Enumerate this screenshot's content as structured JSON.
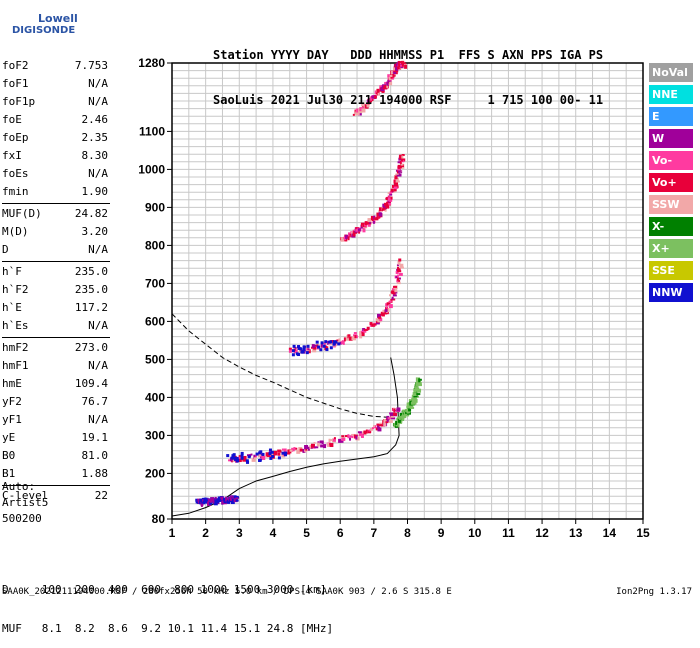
{
  "logo": {
    "line1": "Lowell",
    "line2": "DIGISONDE"
  },
  "header": {
    "row1": "Station YYYY DAY   DDD HHMMSS P1  FFS S AXN PPS IGA PS",
    "row2": "SaoLuis 2021 Jul30 211 194000 RSF     1 715 100 00- 11"
  },
  "params": [
    {
      "k": "foF2",
      "v": "7.753"
    },
    {
      "k": "foF1",
      "v": "N/A"
    },
    {
      "k": "foF1p",
      "v": "N/A"
    },
    {
      "k": "foE",
      "v": "2.46"
    },
    {
      "k": "foEp",
      "v": "2.35"
    },
    {
      "k": "fxI",
      "v": "8.30"
    },
    {
      "k": "foEs",
      "v": "N/A"
    },
    {
      "k": "fmin",
      "v": "1.90"
    },
    {
      "k": "MUF(D)",
      "v": "24.82"
    },
    {
      "k": "M(D)",
      "v": "3.20"
    },
    {
      "k": "D",
      "v": "N/A"
    },
    {
      "k": "h`F",
      "v": "235.0"
    },
    {
      "k": "h`F2",
      "v": "235.0"
    },
    {
      "k": "h`E",
      "v": "117.2"
    },
    {
      "k": "h`Es",
      "v": "N/A"
    },
    {
      "k": "hmF2",
      "v": "273.0"
    },
    {
      "k": "hmF1",
      "v": "N/A"
    },
    {
      "k": "hmE",
      "v": "109.4"
    },
    {
      "k": "yF2",
      "v": "76.7"
    },
    {
      "k": "yF1",
      "v": "N/A"
    },
    {
      "k": "yE",
      "v": "19.1"
    },
    {
      "k": "B0",
      "v": "81.0"
    },
    {
      "k": "B1",
      "v": "1.88"
    },
    {
      "k": "C-level",
      "v": "22"
    }
  ],
  "auto": {
    "line1": "Auto:",
    "line2": "Artist5",
    "line3": "500200"
  },
  "legend": [
    {
      "label": "NoVal",
      "color": "#a0a0a0"
    },
    {
      "label": "NNE",
      "color": "#00e0e0"
    },
    {
      "label": "E",
      "color": "#3399ff"
    },
    {
      "label": "W",
      "color": "#a0009a"
    },
    {
      "label": "Vo-",
      "color": "#ff3aa0"
    },
    {
      "label": "Vo+",
      "color": "#e8003a"
    },
    {
      "label": "SSW",
      "color": "#f2a8a8"
    },
    {
      "label": "X-",
      "color": "#008000"
    },
    {
      "label": "X+",
      "color": "#7cc060"
    },
    {
      "label": "SSE",
      "color": "#c8c800"
    },
    {
      "label": "NNW",
      "color": "#1010d0"
    }
  ],
  "muf": {
    "line1": "D     100  200  400  600  800 1000 1500 3000 [km]",
    "line2": "MUF   8.1  8.2  8.6  9.2 10.1 11.4 15.1 24.8 [MHz]"
  },
  "footer": {
    "left": "SAA0K_2021211194000.RSF / 280fx256h 50 kHz 5.0 km / DPS-4 SAA0K 903 / 2.6 S 315.8 E",
    "right": "Ion2Png 1.3.17"
  },
  "chart_data": {
    "type": "scatter",
    "xlim": [
      1,
      15
    ],
    "ylim": [
      80,
      1280
    ],
    "x_ticks": [
      "1",
      "2",
      "3",
      "4",
      "5",
      "6",
      "7",
      "8",
      "9",
      "10",
      "11",
      "12",
      "13",
      "14",
      "15"
    ],
    "y_ticks": [
      "80",
      "200",
      "300",
      "400",
      "500",
      "600",
      "700",
      "800",
      "900",
      "1000",
      "1100",
      "1280"
    ],
    "grid": true,
    "traces": [
      {
        "name": "O-trace 1st hop",
        "x": [
          2.7,
          3.0,
          3.5,
          4.0,
          4.5,
          5.0,
          5.5,
          6.0,
          6.5,
          7.0,
          7.3,
          7.5,
          7.65
        ],
        "y": [
          240,
          243,
          248,
          255,
          263,
          272,
          282,
          293,
          305,
          322,
          338,
          355,
          378
        ]
      },
      {
        "name": "O-trace 2nd hop",
        "x": [
          4.5,
          5.0,
          5.5,
          6.0,
          6.5,
          7.0,
          7.3,
          7.5,
          7.65,
          7.75
        ],
        "y": [
          527,
          530,
          540,
          552,
          570,
          600,
          630,
          665,
          710,
          760
        ]
      },
      {
        "name": "O-trace 3rd hop",
        "x": [
          6.0,
          6.5,
          7.0,
          7.3,
          7.5,
          7.7,
          7.8
        ],
        "y": [
          820,
          845,
          875,
          905,
          945,
          990,
          1040
        ]
      },
      {
        "name": "O-trace 4th hop",
        "x": [
          6.4,
          6.8,
          7.2,
          7.5,
          7.7,
          7.85
        ],
        "y": [
          1150,
          1180,
          1215,
          1250,
          1280,
          1280
        ]
      },
      {
        "name": "X-trace",
        "x": [
          7.6,
          7.8,
          8.0,
          8.2,
          8.3
        ],
        "y": [
          330,
          352,
          375,
          410,
          450
        ]
      },
      {
        "name": "E-trace",
        "x": [
          1.7,
          2.0,
          2.3,
          2.6,
          2.9
        ],
        "y": [
          128,
          130,
          133,
          135,
          137
        ]
      }
    ],
    "profile": {
      "x": [
        1.0,
        1.5,
        2.0,
        2.5,
        3.0,
        3.5,
        4.0,
        4.5,
        5.0,
        5.5,
        6.0,
        6.5,
        7.0,
        7.4,
        7.65,
        7.75,
        7.7,
        7.6,
        7.5
      ],
      "y": [
        88,
        95,
        110,
        130,
        160,
        180,
        192,
        205,
        216,
        225,
        232,
        238,
        244,
        252,
        275,
        300,
        400,
        460,
        505
      ]
    },
    "dashed_profile": {
      "x": [
        1.0,
        1.5,
        2.0,
        2.5,
        3.0,
        3.5,
        4.0,
        4.5,
        5.0,
        5.5,
        6.0,
        6.5,
        7.0,
        7.4
      ],
      "y": [
        620,
        575,
        540,
        505,
        480,
        458,
        440,
        420,
        400,
        385,
        370,
        358,
        350,
        348
      ]
    }
  }
}
